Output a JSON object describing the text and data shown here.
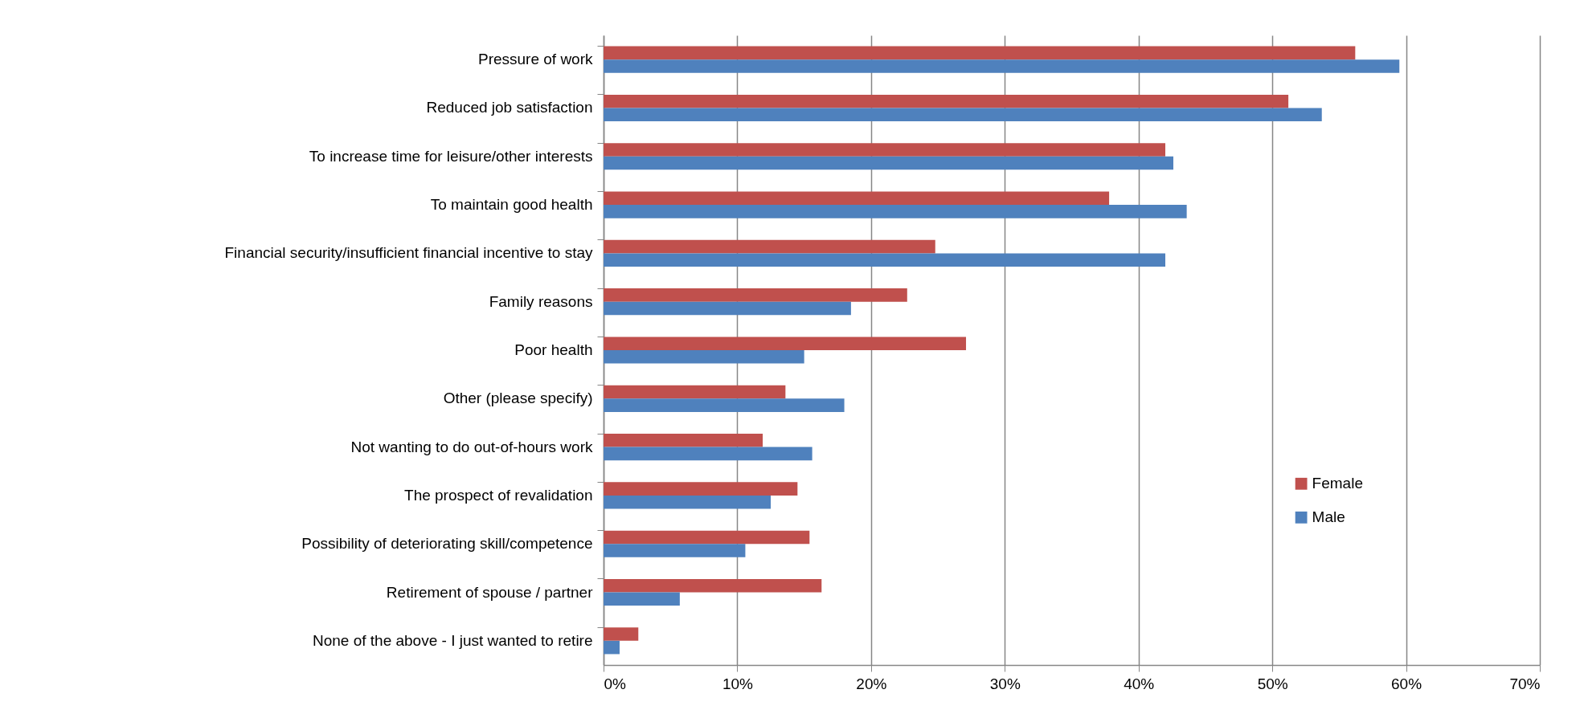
{
  "chart_data": {
    "type": "bar",
    "orientation": "horizontal",
    "categories": [
      "Pressure of work",
      "Reduced job satisfaction",
      "To increase time for leisure/other interests",
      "To maintain good health",
      "Financial security/insufficient financial incentive to stay",
      "Family reasons",
      "Poor health",
      "Other (please specify)",
      "Not wanting to do out-of-hours work",
      "The prospect of revalidation",
      "Possibility of deteriorating skill/competence",
      "Retirement of spouse / partner",
      "None of the above - I just wanted to retire"
    ],
    "series": [
      {
        "name": "Female",
        "color": "#c0504d",
        "values": [
          56.2,
          51.2,
          42.0,
          37.8,
          24.8,
          22.7,
          27.1,
          13.6,
          11.9,
          14.5,
          15.4,
          16.3,
          2.6
        ]
      },
      {
        "name": "Male",
        "color": "#4f81bd",
        "values": [
          59.5,
          53.7,
          42.6,
          43.6,
          42.0,
          18.5,
          15.0,
          18.0,
          15.6,
          12.5,
          10.6,
          5.7,
          1.2
        ]
      }
    ],
    "xlim": [
      0,
      70
    ],
    "xticks": [
      {
        "value": 0,
        "label": "0%"
      },
      {
        "value": 10,
        "label": "10%"
      },
      {
        "value": 20,
        "label": "20%"
      },
      {
        "value": 30,
        "label": "30%"
      },
      {
        "value": 40,
        "label": "40%"
      },
      {
        "value": 50,
        "label": "50%"
      },
      {
        "value": 60,
        "label": "60%"
      },
      {
        "value": 70,
        "label": "70%"
      }
    ],
    "grid": "x",
    "legend": "right"
  }
}
